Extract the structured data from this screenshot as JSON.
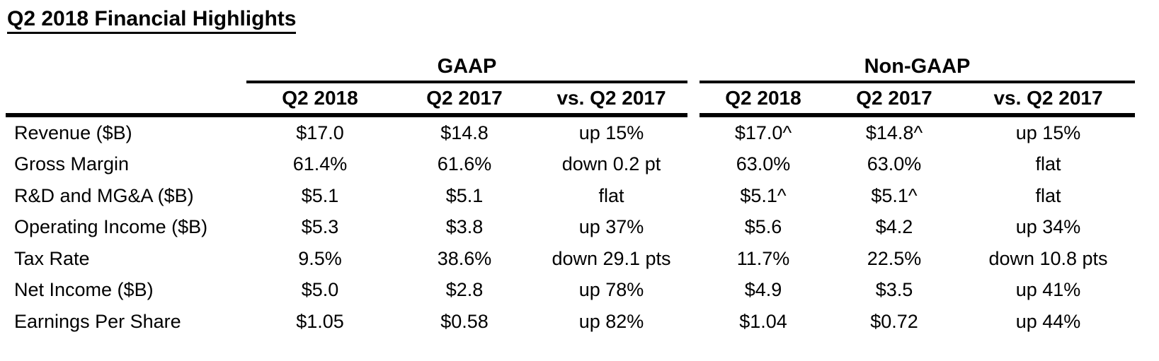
{
  "page_title": "Q2 2018 Financial Highlights",
  "table": {
    "groups": [
      {
        "label": "GAAP"
      },
      {
        "label": "Non-GAAP"
      }
    ],
    "columns": [
      "Q2 2018",
      "Q2 2017",
      "vs. Q2 2017",
      "Q2 2018",
      "Q2 2017",
      "vs. Q2 2017"
    ],
    "rows": [
      {
        "label": "Revenue ($B)",
        "values": [
          "$17.0",
          "$14.8",
          "up 15%",
          "$17.0^",
          "$14.8^",
          "up 15%"
        ]
      },
      {
        "label": "Gross Margin",
        "values": [
          "61.4%",
          "61.6%",
          "down 0.2 pt",
          "63.0%",
          "63.0%",
          "flat"
        ]
      },
      {
        "label": "R&D and MG&A ($B)",
        "values": [
          "$5.1",
          "$5.1",
          "flat",
          "$5.1^",
          "$5.1^",
          "flat"
        ]
      },
      {
        "label": "Operating Income ($B)",
        "values": [
          "$5.3",
          "$3.8",
          "up 37%",
          "$5.6",
          "$4.2",
          "up 34%"
        ]
      },
      {
        "label": "Tax Rate",
        "values": [
          "9.5%",
          "38.6%",
          "down 29.1 pts",
          "11.7%",
          "22.5%",
          "down 10.8 pts"
        ]
      },
      {
        "label": "Net Income ($B)",
        "values": [
          "$5.0",
          "$2.8",
          "up 78%",
          "$4.9",
          "$3.5",
          "up 41%"
        ]
      },
      {
        "label": "Earnings Per Share",
        "values": [
          "$1.05",
          "$0.58",
          "up 82%",
          "$1.04",
          "$0.72",
          "up 44%"
        ]
      }
    ]
  },
  "colors": {
    "text": "#000000",
    "background": "#ffffff",
    "rule": "#000000"
  }
}
